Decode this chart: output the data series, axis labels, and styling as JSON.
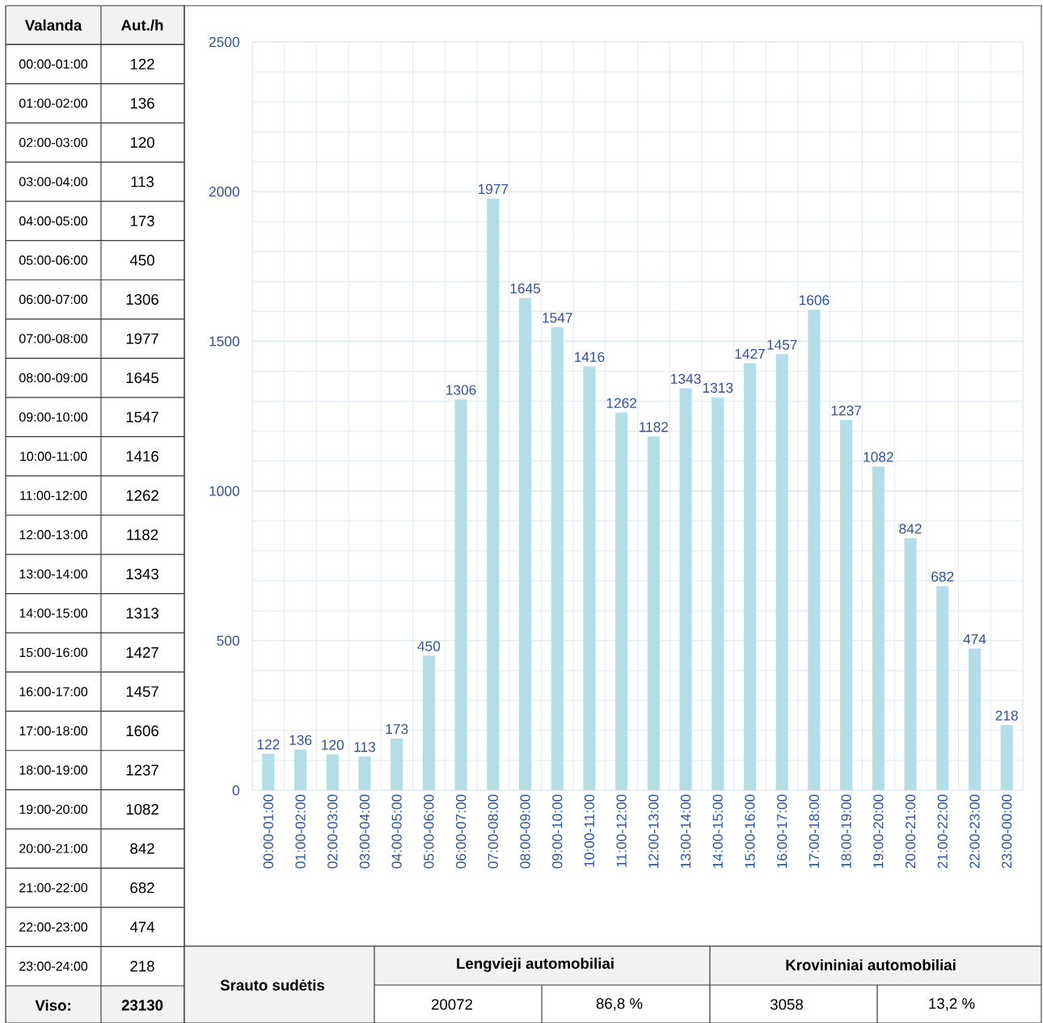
{
  "chart_data": {
    "type": "bar",
    "categories": [
      "00:00-01:00",
      "01:00-02:00",
      "02:00-03:00",
      "03:00-04:00",
      "04:00-05:00",
      "05:00-06:00",
      "06:00-07:00",
      "07:00-08:00",
      "08:00-09:00",
      "09:00-10:00",
      "10:00-11:00",
      "11:00-12:00",
      "12:00-13:00",
      "13:00-14:00",
      "14:00-15:00",
      "15:00-16:00",
      "16:00-17:00",
      "17:00-18:00",
      "18:00-19:00",
      "19:00-20:00",
      "20:00-21:00",
      "21:00-22:00",
      "22:00-23:00",
      "23:00-00:00"
    ],
    "values": [
      122,
      136,
      120,
      113,
      173,
      450,
      1306,
      1977,
      1645,
      1547,
      1416,
      1262,
      1182,
      1343,
      1313,
      1427,
      1457,
      1606,
      1237,
      1082,
      842,
      682,
      474,
      218
    ],
    "color": "#b4dde6",
    "data_labels": true,
    "ylim": [
      0,
      2500
    ],
    "yticks": [
      0,
      500,
      1000,
      1500,
      2000,
      2500
    ],
    "grid": true,
    "annotations": [
      "Valanda",
      "Aut./h",
      "00:00-01:00",
      "01:00-02:00",
      "02:00-03:00",
      "03:00-04:00",
      "04:00-05:00",
      "05:00-06:00",
      "06:00-07:00",
      "07:00-08:00",
      "08:00-09:00",
      "09:00-10:00",
      "10:00-11:00",
      "11:00-12:00",
      "12:00-13:00",
      "13:00-14:00",
      "14:00-15:00",
      "15:00-16:00",
      "16:00-17:00",
      "17:00-18:00",
      "18:00-19:00",
      "19:00-20:00",
      "20:00-21:00",
      "21:00-22:00",
      "22:00-23:00",
      "23:00-24:00",
      "Viso:",
      "23130",
      "Srauto sudėtis",
      "Lengvieji automobiliai",
      "Krovininiai automobiliai",
      "20072",
      "86,8 %",
      "3058",
      "13,2 %",
      "122",
      "136",
      "120",
      "113",
      "173",
      "450",
      "1306",
      "1977",
      "1645",
      "1547",
      "1416",
      "1262",
      "1182",
      "1343",
      "1313",
      "1427",
      "1457",
      "1606",
      "1237",
      "1082",
      "842",
      "682",
      "474",
      "218"
    ]
  }
}
